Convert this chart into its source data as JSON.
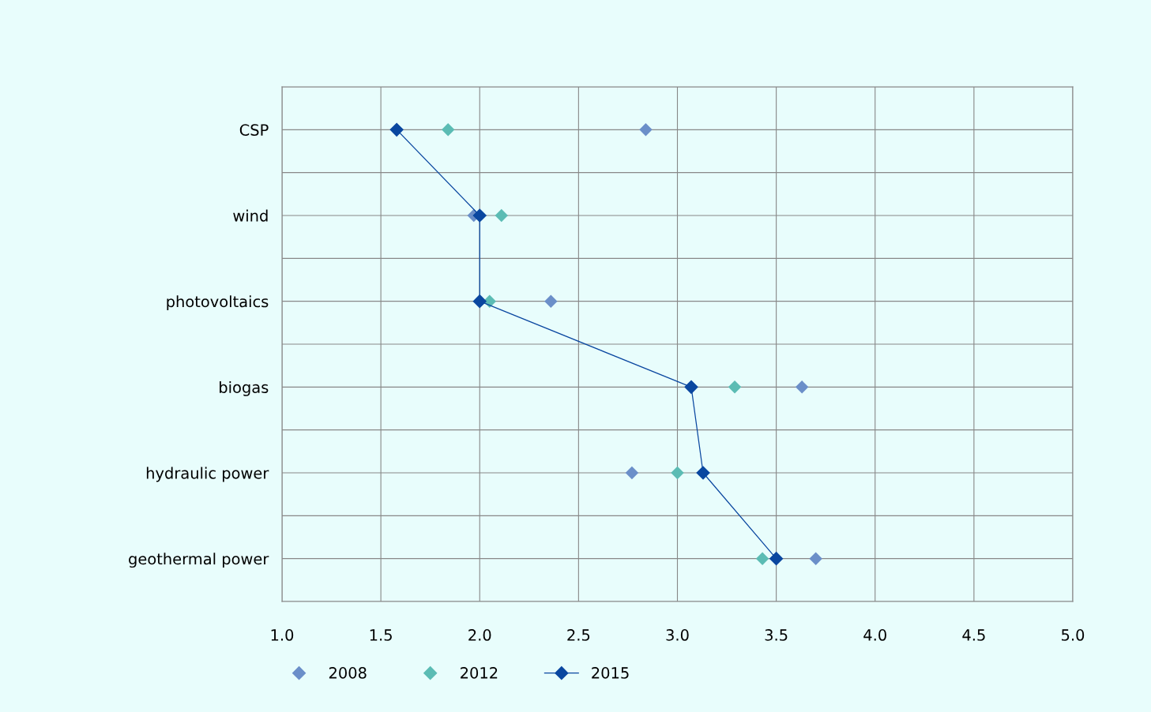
{
  "chart_data": {
    "type": "scatter",
    "orientation": "horizontal",
    "categories": [
      "CSP",
      "wind",
      "photovoltaics",
      "biogas",
      "hydraulic power",
      "geothermal power"
    ],
    "series": [
      {
        "name": "2008",
        "color": "#6b8fc9",
        "marker": "diamond",
        "values": [
          2.84,
          1.97,
          2.36,
          3.63,
          2.77,
          3.7
        ]
      },
      {
        "name": "2012",
        "color": "#5bbcb4",
        "marker": "diamond",
        "values": [
          1.84,
          2.11,
          2.05,
          3.29,
          3.0,
          3.43
        ]
      },
      {
        "name": "2015",
        "type": "line",
        "color": "#0a47a0",
        "marker": "diamond",
        "line_style": "solid",
        "values": [
          1.58,
          2.0,
          2.0,
          3.07,
          3.13,
          3.5
        ]
      }
    ],
    "xlim": [
      1.0,
      5.0
    ],
    "xticks": [
      {
        "value": 1.0,
        "label": "1.0"
      },
      {
        "value": 1.5,
        "label": "1.5"
      },
      {
        "value": 2.0,
        "label": "2.0"
      },
      {
        "value": 2.5,
        "label": "2.5"
      },
      {
        "value": 3.0,
        "label": "3.0"
      },
      {
        "value": 3.5,
        "label": "3.5"
      },
      {
        "value": 4.0,
        "label": "4.0"
      },
      {
        "value": 4.5,
        "label": "4.5"
      },
      {
        "value": 5.0,
        "label": "5.0"
      }
    ],
    "grid": true,
    "legend": "bottom"
  }
}
